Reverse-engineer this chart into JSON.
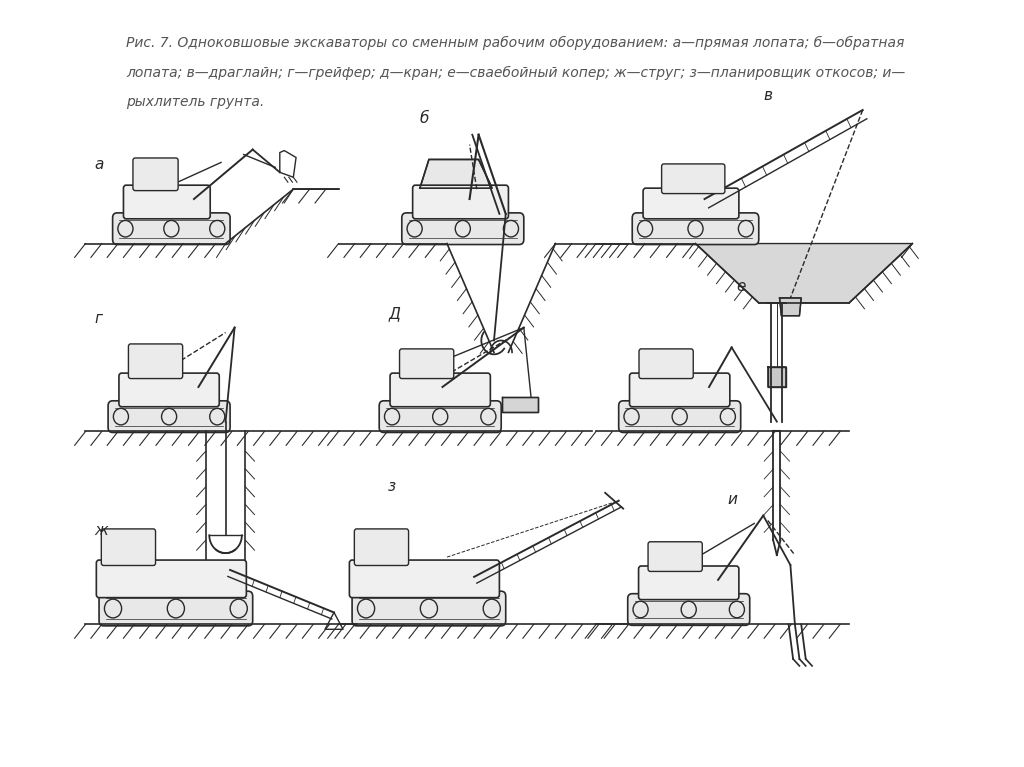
{
  "title_text": "Рис. 7. Одноковшовые экскаваторы со сменным рабочим оборудованием: а—прямая лопата; б—обратная",
  "title_text2": "лопата; в—драглайн; г—грейфер; д—кран; е—сваебойный копер; ж—струг; з—планировщик откосов; и—",
  "title_text3": "рыхлитель грунта.",
  "bg_color": "#ffffff",
  "text_color": "#555555",
  "lc": "#2a2a2a",
  "figsize": [
    10.24,
    7.67
  ],
  "dpi": 100
}
